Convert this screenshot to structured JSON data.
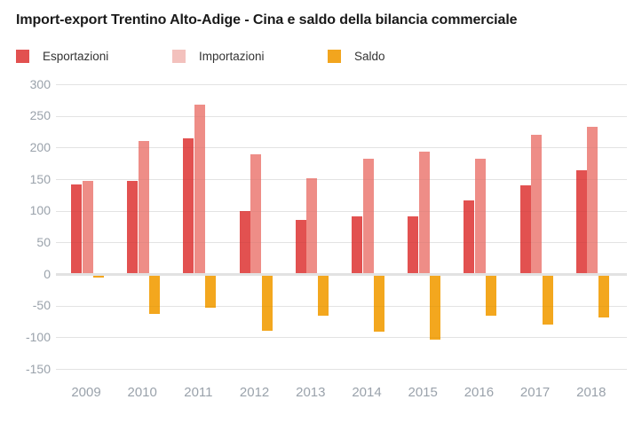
{
  "title": "Import-export Trentino Alto-Adige - Cina e saldo della bilancia commerciale",
  "legend": [
    {
      "label": "Esportazioni",
      "color": "#e25150"
    },
    {
      "label": "Importazioni",
      "color": "#f3c1bd"
    },
    {
      "label": "Saldo",
      "color": "#f2a51e"
    }
  ],
  "chart_data": {
    "type": "bar",
    "title": "Import-export Trentino Alto-Adige - Cina e saldo della bilancia commerciale",
    "categories": [
      "2009",
      "2010",
      "2011",
      "2012",
      "2013",
      "2014",
      "2015",
      "2016",
      "2017",
      "2018"
    ],
    "series": [
      {
        "name": "Esportazioni",
        "color": "#e25150",
        "values": [
          141,
          147,
          215,
          100,
          85,
          91,
          91,
          117,
          140,
          164
        ]
      },
      {
        "name": "Importazioni",
        "color": "#ee8d87",
        "values": [
          147,
          210,
          268,
          190,
          151,
          182,
          194,
          183,
          220,
          233
        ]
      },
      {
        "name": "Saldo",
        "color": "#f3a71e",
        "values": [
          -6,
          -63,
          -53,
          -90,
          -66,
          -91,
          -103,
          -66,
          -80,
          -69
        ]
      }
    ],
    "xlabel": "",
    "ylabel": "",
    "ylim": [
      -150,
      300
    ],
    "yticks": [
      300,
      250,
      200,
      150,
      100,
      50,
      0,
      -50,
      -100,
      -150
    ],
    "grid": true,
    "legend_position": "top"
  }
}
